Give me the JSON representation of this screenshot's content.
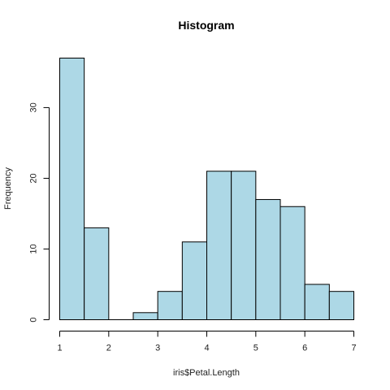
{
  "chart_data": {
    "type": "bar",
    "title": "Histogram",
    "xlabel": "iris$Petal.Length",
    "ylabel": "Frequency",
    "bin_edges": [
      1,
      1.5,
      2,
      2.5,
      3,
      3.5,
      4,
      4.5,
      5,
      5.5,
      6,
      6.5,
      7
    ],
    "values": [
      37,
      13,
      0,
      1,
      4,
      11,
      21,
      21,
      17,
      16,
      5,
      4
    ],
    "xlim": [
      1,
      7
    ],
    "ylim": [
      0,
      37
    ],
    "x_ticks": [
      "1",
      "2",
      "3",
      "4",
      "5",
      "6",
      "7"
    ],
    "y_ticks": [
      "0",
      "10",
      "20",
      "30"
    ],
    "bar_fill": "#add8e6",
    "bar_stroke": "#000000",
    "grid": false,
    "legend": "none"
  }
}
